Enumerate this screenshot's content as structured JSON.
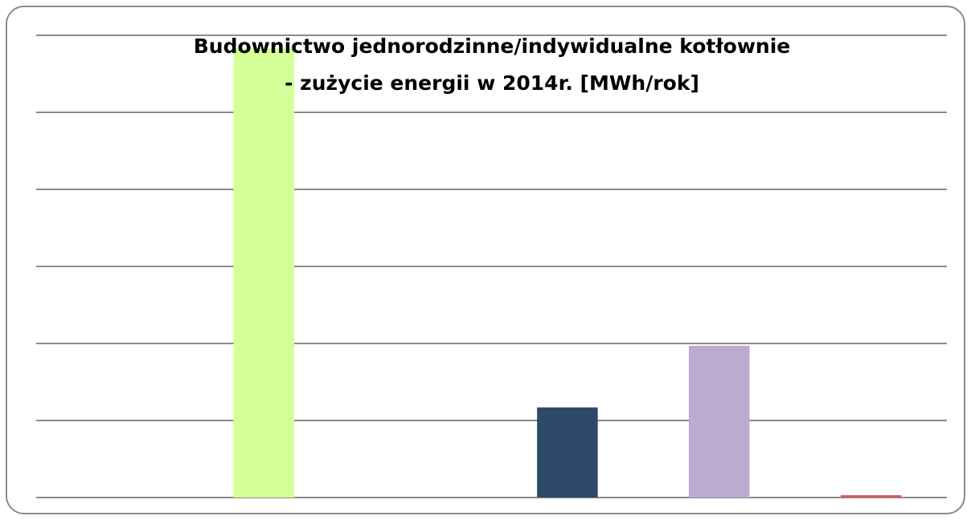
{
  "chart_data": {
    "type": "bar",
    "title": [
      "Budownictwo jednorodzinne/indywidualne kotłownie",
      "- zużycie energii  w 2014r. [MWh/rok]"
    ],
    "categories": [
      null,
      null,
      null,
      null,
      null,
      null
    ],
    "values": [
      0,
      5.83,
      0,
      1.17,
      1.97,
      0.03
    ],
    "colors": [
      "#9bbb59",
      "#d4ff99",
      "#4f81bd",
      "#2e4a6b",
      "#bcaad0",
      "#d9574f"
    ],
    "ylim": [
      0,
      6
    ],
    "yticks": [
      0,
      1,
      2,
      3,
      4,
      5,
      6
    ],
    "grid": true
  }
}
